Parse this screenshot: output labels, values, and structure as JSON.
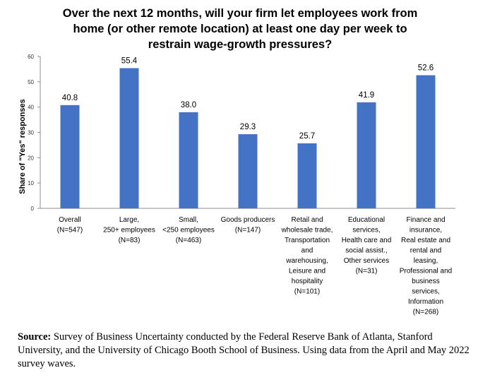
{
  "chart_data": {
    "type": "bar",
    "title_lines": [
      "Over the next 12 months, will your firm let employees work from",
      "home (or other remote location) at least one day per week to",
      "restrain wage-growth pressures?"
    ],
    "ylabel": "Share of \"Yes\" responses",
    "ylim": [
      0,
      60
    ],
    "yticks": [
      0,
      10,
      20,
      30,
      40,
      50,
      60
    ],
    "grid": false,
    "bar_color": "#4472C4",
    "categories": [
      [
        "Overall",
        "(N=547)"
      ],
      [
        "Large,",
        "250+ employees",
        "(N=83)"
      ],
      [
        "Small,",
        "<250 employees",
        "(N=463)"
      ],
      [
        "Goods producers",
        "(N=147)"
      ],
      [
        "Retail and",
        "wholesale trade,",
        "Transportation",
        "and",
        "warehousing,",
        "Leisure and",
        "hospitality",
        "(N=101)"
      ],
      [
        "Educational",
        "services,",
        "Health care and",
        "social assist.,",
        "Other services",
        "(N=31)"
      ],
      [
        "Finance and",
        "insurance,",
        "Real estate and",
        "rental and",
        "leasing,",
        "Professional and",
        "business",
        "services,",
        "Information",
        "(N=268)"
      ]
    ],
    "values": [
      40.8,
      55.4,
      38.0,
      29.3,
      25.7,
      41.9,
      52.6
    ],
    "value_labels": [
      "40.8",
      "55.4",
      "38.0",
      "29.3",
      "25.7",
      "41.9",
      "52.6"
    ]
  },
  "source": {
    "label": "Source:",
    "text": " Survey of Business Uncertainty conducted by the Federal Reserve Bank of Atlanta, Stanford University, and the University of Chicago Booth School of Business. Using data from the April and May 2022 survey waves."
  }
}
